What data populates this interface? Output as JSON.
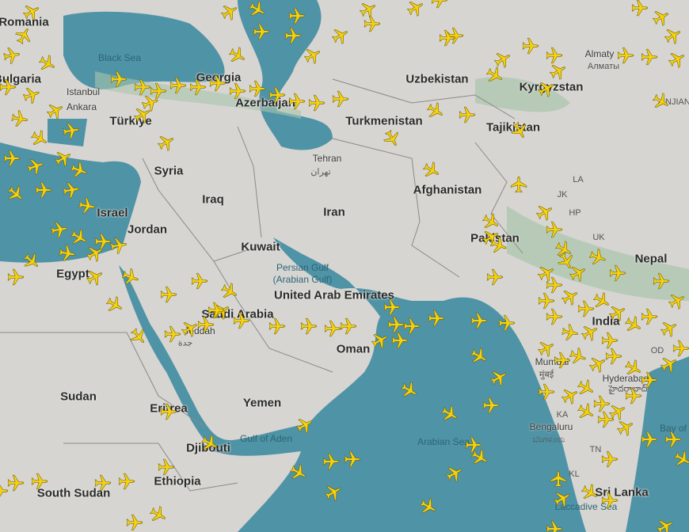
{
  "map": {
    "colors": {
      "land": "#d6d5d1",
      "sea": "#4f93a6",
      "green": "#9fbfa6",
      "plane": "#f6d20e",
      "plane_outline": "#6b5a00"
    },
    "countries": [
      "Romania",
      "Bulgaria",
      "Türkiye",
      "Georgia",
      "Azerbaijan",
      "Syria",
      "Iraq",
      "Iran",
      "Turkmenistan",
      "Uzbekistan",
      "Kyrgyzstan",
      "Tajikistan",
      "Afghanistan",
      "Pakistan",
      "Israel",
      "Jordan",
      "Kuwait",
      "Egypt",
      "Saudi Arabia",
      "United Arab Emirates",
      "Oman",
      "Yemen",
      "Sudan",
      "Eritrea",
      "Djibouti",
      "Ethiopia",
      "South Sudan",
      "India",
      "Nepal",
      "Sri Lanka"
    ],
    "cities": [
      "Istanbul",
      "Ankara",
      "Tehran",
      "تهران",
      "Almaty",
      "Алматы",
      "Jeddah",
      "جدة",
      "Mumbai",
      "मुंबई",
      "Hyderabad",
      "హైదరాబాద్",
      "Bengaluru",
      "ಬೆಂಗಳೂರು",
      "XINJIANG"
    ],
    "seas": [
      "Black Sea",
      "Persian Gulf",
      "(Arabian Gulf)",
      "Gulf of Aden",
      "Arabian Sea",
      "Bay of",
      "Laccadive Sea"
    ],
    "states": [
      "LA",
      "JK",
      "HP",
      "UK",
      "OD",
      "KA",
      "TN",
      "KL"
    ]
  }
}
